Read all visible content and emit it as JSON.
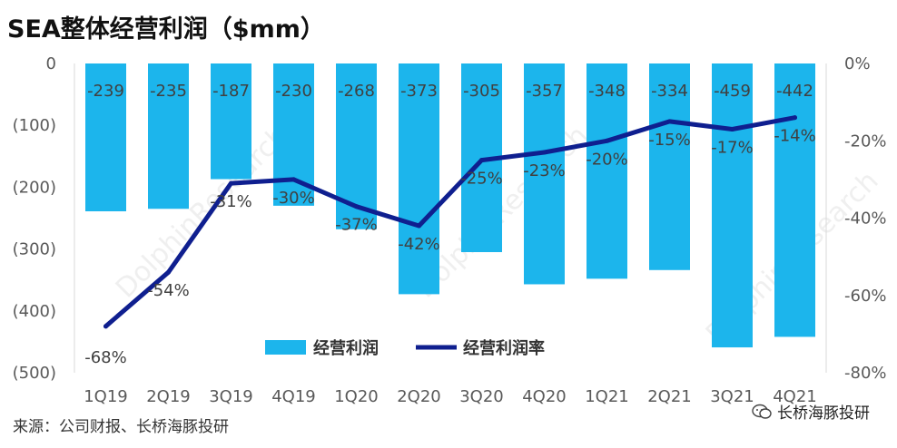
{
  "title": "SEA整体经营利润（$mm）",
  "source": "来源：公司财报、长桥海豚投研",
  "brand": "长桥海豚投研",
  "watermark": "DolphinResearch",
  "colors": {
    "bar": "#1cb5ec",
    "line": "#0f1f8f"
  },
  "chart_data": {
    "type": "bar+line",
    "categories": [
      "1Q19",
      "2Q19",
      "3Q19",
      "4Q19",
      "1Q20",
      "2Q20",
      "3Q20",
      "4Q20",
      "1Q21",
      "2Q21",
      "3Q21",
      "4Q21"
    ],
    "series": [
      {
        "name": "经营利润",
        "type": "bar",
        "axis": "left",
        "values": [
          -239,
          -235,
          -187,
          -230,
          -268,
          -373,
          -305,
          -357,
          -348,
          -334,
          -459,
          -442
        ],
        "labels": [
          "-239",
          "-235",
          "-187",
          "-230",
          "-268",
          "-373",
          "-305",
          "-357",
          "-348",
          "-334",
          "-459",
          "-442"
        ]
      },
      {
        "name": "经营利润率",
        "type": "line",
        "axis": "right",
        "values": [
          -68,
          -54,
          -31,
          -30,
          -37,
          -42,
          -25,
          -23,
          -20,
          -15,
          -17,
          -14
        ],
        "labels": [
          "-68%",
          "-54%",
          "-31%",
          "-30%",
          "-37%",
          "-42%",
          "-25%",
          "-23%",
          "-20%",
          "-15%",
          "-17%",
          "-14%"
        ]
      }
    ],
    "y_left": {
      "lim": [
        -500,
        0
      ],
      "ticks": [
        0,
        -100,
        -200,
        -300,
        -400,
        -500
      ],
      "tick_labels": [
        "0",
        "(100)",
        "(200)",
        "(300)",
        "(400)",
        "(500)"
      ]
    },
    "y_right": {
      "lim": [
        -80,
        0
      ],
      "ticks": [
        0,
        -20,
        -40,
        -60,
        -80
      ],
      "tick_labels": [
        "0%",
        "-20%",
        "-40%",
        "-60%",
        "-80%"
      ]
    },
    "grid": false,
    "legend": "inside, lower-right"
  }
}
